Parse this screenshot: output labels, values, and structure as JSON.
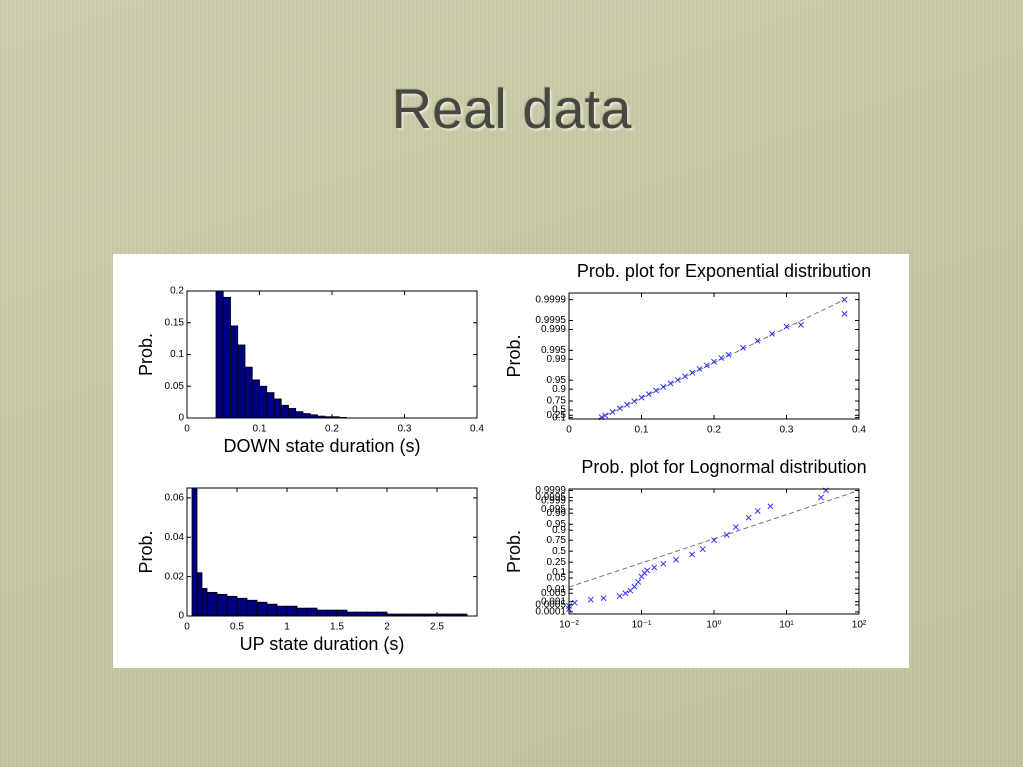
{
  "title": "Real data",
  "chart_data": [
    {
      "type": "histogram",
      "xlabel": "DOWN state duration (s)",
      "ylabel": "Prob.",
      "color": "#00007f",
      "bins": [
        0.04,
        0.05,
        0.06,
        0.07,
        0.08,
        0.09,
        0.1,
        0.11,
        0.12,
        0.13,
        0.14,
        0.15,
        0.16,
        0.17,
        0.18,
        0.19,
        0.2,
        0.21,
        0.22
      ],
      "values": [
        0.2,
        0.19,
        0.145,
        0.115,
        0.08,
        0.06,
        0.05,
        0.04,
        0.03,
        0.02,
        0.015,
        0.01,
        0.007,
        0.005,
        0.003,
        0.002,
        0.002,
        0.001
      ],
      "xlim": [
        0,
        0.4
      ],
      "xticks": [
        0,
        0.1,
        0.2,
        0.3,
        0.4
      ],
      "ylim": [
        0,
        0.2
      ],
      "yticks": [
        0,
        0.05,
        0.1,
        0.15,
        0.2
      ]
    },
    {
      "type": "histogram",
      "xlabel": "UP state duration (s)",
      "ylabel": "Prob.",
      "color": "#00007f",
      "bins": [
        0.05,
        0.1,
        0.15,
        0.2,
        0.3,
        0.4,
        0.5,
        0.6,
        0.7,
        0.8,
        0.9,
        1,
        1.1,
        1.2,
        1.3,
        1.4,
        1.5,
        1.6,
        1.7,
        1.8,
        1.9,
        2,
        2.1,
        2.2,
        2.3,
        2.4,
        2.5,
        2.6,
        2.7,
        2.8
      ],
      "values": [
        0.065,
        0.022,
        0.014,
        0.012,
        0.011,
        0.01,
        0.009,
        0.008,
        0.007,
        0.006,
        0.005,
        0.005,
        0.004,
        0.004,
        0.003,
        0.003,
        0.003,
        0.002,
        0.002,
        0.002,
        0.002,
        0.001,
        0.001,
        0.001,
        0.001,
        0.001,
        0.001,
        0.001,
        0.001
      ],
      "xlim": [
        0,
        2.9
      ],
      "xticks": [
        0,
        0.5,
        1,
        1.5,
        2,
        2.5
      ],
      "ylim": [
        0,
        0.065
      ],
      "yticks": [
        0,
        0.02,
        0.04,
        0.06
      ]
    },
    {
      "type": "probability-plot",
      "title": "Prob. plot for Exponential distribution",
      "ylabel": "Prob.",
      "color": "#3333ff",
      "yscale": "exponential-probability",
      "x": [
        0.045,
        0.05,
        0.06,
        0.07,
        0.08,
        0.09,
        0.1,
        0.11,
        0.12,
        0.13,
        0.14,
        0.15,
        0.16,
        0.17,
        0.18,
        0.19,
        0.2,
        0.21,
        0.22,
        0.24,
        0.26,
        0.28,
        0.3,
        0.32,
        0.38,
        0.38
      ],
      "values": [
        0.128,
        0.24,
        0.42,
        0.56,
        0.667,
        0.747,
        0.808,
        0.854,
        0.889,
        0.916,
        0.936,
        0.951,
        0.963,
        0.972,
        0.979,
        0.984,
        0.988,
        0.991,
        0.993,
        0.9959,
        0.9976,
        0.9986,
        0.9992,
        0.9993,
        0.9997,
        0.9999
      ],
      "reference_line": {
        "x": [
          0.04,
          0.38
        ],
        "values": [
          0,
          0.9999
        ]
      },
      "xlim": [
        0,
        0.4
      ],
      "xticks": [
        0,
        0.1,
        0.2,
        0.3,
        0.4
      ],
      "ylim": [
        0,
        0.99994
      ],
      "yticks": [
        0.1,
        0.25,
        0.5,
        0.75,
        0.9,
        0.95,
        0.99,
        0.995,
        0.999,
        0.9995,
        0.9999
      ]
    },
    {
      "type": "probability-plot",
      "title": "Prob. plot for Lognormal distribution",
      "ylabel": "Prob.",
      "color": "#3333ff",
      "xscale": "log",
      "yscale": "normal-probability",
      "x": [
        0.01,
        0.01,
        0.012,
        0.02,
        0.03,
        0.05,
        0.06,
        0.07,
        0.08,
        0.09,
        0.1,
        0.11,
        0.12,
        0.15,
        0.2,
        0.3,
        0.5,
        0.7,
        1,
        1.5,
        2,
        3,
        4,
        6,
        30,
        35
      ],
      "values": [
        0.0002,
        0.0004,
        0.0008,
        0.0015,
        0.002,
        0.003,
        0.005,
        0.008,
        0.015,
        0.03,
        0.06,
        0.09,
        0.12,
        0.16,
        0.22,
        0.3,
        0.42,
        0.55,
        0.75,
        0.84,
        0.93,
        0.98,
        0.993,
        0.997,
        0.9995,
        0.9999
      ],
      "reference_line": {
        "x": [
          0.01,
          100
        ],
        "values": [
          0.014,
          0.9999
        ]
      },
      "xlim": [
        0.01,
        100
      ],
      "xticks": [
        {
          "value": 0.01,
          "label": "10⁻²"
        },
        {
          "value": 0.1,
          "label": "10⁻¹"
        },
        {
          "value": 1,
          "label": "10⁰"
        },
        {
          "value": 10,
          "label": "10¹"
        },
        {
          "value": 100,
          "label": "10²"
        }
      ],
      "ylim": [
        6e-05,
        0.99993
      ],
      "yticks": [
        0.0001,
        0.0005,
        0.001,
        0.005,
        0.01,
        0.05,
        0.1,
        0.25,
        0.5,
        0.75,
        0.9,
        0.95,
        0.99,
        0.995,
        0.999,
        0.9995,
        0.9999
      ]
    }
  ]
}
